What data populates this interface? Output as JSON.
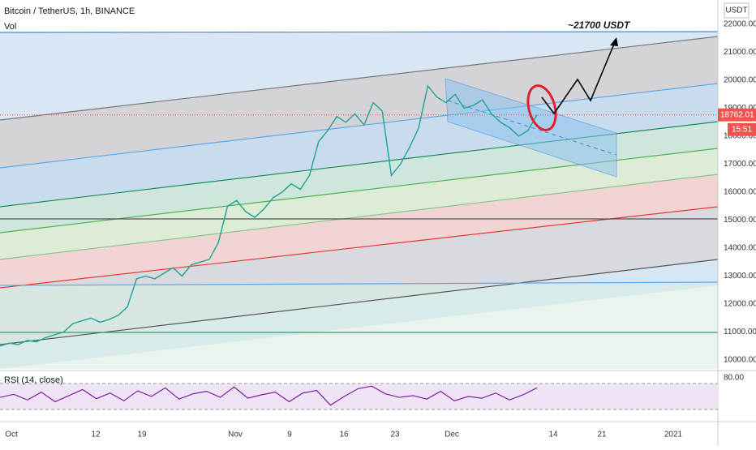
{
  "header": {
    "symbol": "Bitcoin / TetherUS, 1h, BINANCE",
    "volume": "Vol",
    "currency": "USDT"
  },
  "annotation": "~21700 USDT",
  "price_axis": {
    "labels": [
      "22000.00",
      "21000.00",
      "20000.00",
      "19000.00",
      "18000.00",
      "17000.00",
      "16000.00",
      "15000.00",
      "14000.00",
      "13000.00",
      "12000.00",
      "11000.00",
      "10000.00"
    ],
    "levels": [
      22000,
      21000,
      20000,
      19000,
      18000,
      17000,
      16000,
      15000,
      14000,
      13000,
      12000,
      11000,
      10000
    ],
    "last_price": "18762.01",
    "countdown": "15:51"
  },
  "time_axis": {
    "labels": [
      "Oct",
      "12",
      "19",
      "Nov",
      "9",
      "16",
      "23",
      "Dec",
      "14",
      "21",
      "2021"
    ]
  },
  "rsi": {
    "title": "RSI (14, close)",
    "upper": "80.00",
    "values": [
      48,
      55,
      42,
      60,
      38,
      52,
      66,
      45,
      58,
      40,
      63,
      50,
      70,
      44,
      56,
      62,
      48,
      72,
      46,
      54,
      60,
      38,
      58,
      64,
      30,
      50,
      68,
      74,
      56,
      48,
      52,
      44,
      62,
      40,
      50,
      46,
      58,
      42,
      54,
      70
    ]
  },
  "price_series": {
    "values": [
      10500,
      10600,
      10550,
      10700,
      10650,
      10800,
      10900,
      11000,
      11300,
      11400,
      11500,
      11350,
      11450,
      11600,
      11900,
      12900,
      13000,
      12900,
      13100,
      13300,
      13000,
      13400,
      13500,
      13600,
      14200,
      15500,
      15700,
      15300,
      15100,
      15400,
      15800,
      16000,
      16300,
      16100,
      16600,
      17800,
      18200,
      18700,
      18500,
      18800,
      18400,
      19200,
      18900,
      16600,
      17000,
      17600,
      18300,
      19800,
      19400,
      19200,
      19500,
      19000,
      19100,
      19300,
      18800,
      18500,
      18300,
      18000,
      18200,
      18762.01
    ]
  }
}
